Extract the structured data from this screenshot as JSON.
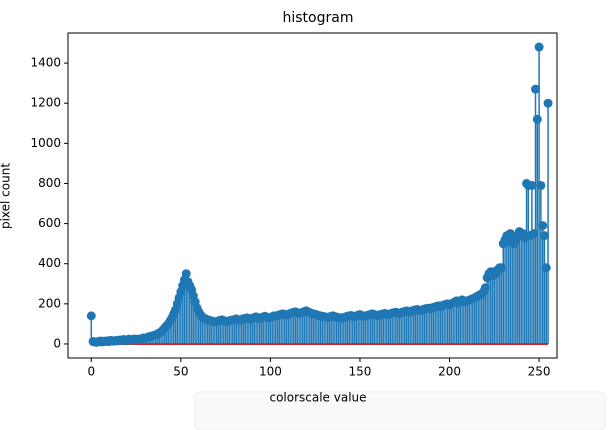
{
  "chart_data": {
    "type": "stem",
    "title": "histogram",
    "xlabel": "colorscale value",
    "ylabel": "pixel count",
    "x": [
      0,
      1,
      2,
      3,
      4,
      5,
      6,
      7,
      8,
      9,
      10,
      11,
      12,
      13,
      14,
      15,
      16,
      17,
      18,
      19,
      20,
      21,
      22,
      23,
      24,
      25,
      26,
      27,
      28,
      29,
      30,
      31,
      32,
      33,
      34,
      35,
      36,
      37,
      38,
      39,
      40,
      41,
      42,
      43,
      44,
      45,
      46,
      47,
      48,
      49,
      50,
      51,
      52,
      53,
      54,
      55,
      56,
      57,
      58,
      59,
      60,
      61,
      62,
      63,
      64,
      65,
      66,
      67,
      68,
      69,
      70,
      71,
      72,
      73,
      74,
      75,
      76,
      77,
      78,
      79,
      80,
      81,
      82,
      83,
      84,
      85,
      86,
      87,
      88,
      89,
      90,
      91,
      92,
      93,
      94,
      95,
      96,
      97,
      98,
      99,
      100,
      101,
      102,
      103,
      104,
      105,
      106,
      107,
      108,
      109,
      110,
      111,
      112,
      113,
      114,
      115,
      116,
      117,
      118,
      119,
      120,
      121,
      122,
      123,
      124,
      125,
      126,
      127,
      128,
      129,
      130,
      131,
      132,
      133,
      134,
      135,
      136,
      137,
      138,
      139,
      140,
      141,
      142,
      143,
      144,
      145,
      146,
      147,
      148,
      149,
      150,
      151,
      152,
      153,
      154,
      155,
      156,
      157,
      158,
      159,
      160,
      161,
      162,
      163,
      164,
      165,
      166,
      167,
      168,
      169,
      170,
      171,
      172,
      173,
      174,
      175,
      176,
      177,
      178,
      179,
      180,
      181,
      182,
      183,
      184,
      185,
      186,
      187,
      188,
      189,
      190,
      191,
      192,
      193,
      194,
      195,
      196,
      197,
      198,
      199,
      200,
      201,
      202,
      203,
      204,
      205,
      206,
      207,
      208,
      209,
      210,
      211,
      212,
      213,
      214,
      215,
      216,
      217,
      218,
      219,
      220,
      221,
      222,
      223,
      224,
      225,
      226,
      227,
      228,
      229,
      230,
      231,
      232,
      233,
      234,
      235,
      236,
      237,
      238,
      239,
      240,
      241,
      242,
      243,
      244,
      245,
      246,
      247,
      248,
      249,
      250,
      251,
      252,
      253,
      254,
      255
    ],
    "values": [
      140,
      12,
      10,
      8,
      12,
      15,
      10,
      14,
      12,
      16,
      12,
      18,
      15,
      14,
      18,
      16,
      20,
      18,
      22,
      16,
      20,
      24,
      18,
      22,
      25,
      20,
      24,
      22,
      26,
      30,
      28,
      32,
      35,
      38,
      40,
      42,
      45,
      50,
      55,
      60,
      70,
      80,
      90,
      100,
      115,
      130,
      150,
      170,
      200,
      230,
      260,
      290,
      320,
      350,
      310,
      290,
      270,
      240,
      210,
      180,
      160,
      145,
      135,
      128,
      125,
      120,
      118,
      115,
      112,
      110,
      112,
      115,
      118,
      120,
      116,
      114,
      112,
      115,
      118,
      120,
      122,
      125,
      120,
      118,
      122,
      126,
      128,
      130,
      126,
      124,
      128,
      132,
      135,
      130,
      128,
      132,
      135,
      138,
      134,
      130,
      132,
      136,
      140,
      138,
      142,
      145,
      148,
      150,
      146,
      144,
      148,
      152,
      155,
      158,
      160,
      156,
      152,
      155,
      158,
      162,
      165,
      160,
      156,
      152,
      150,
      148,
      145,
      142,
      140,
      138,
      136,
      134,
      132,
      135,
      138,
      140,
      136,
      134,
      132,
      130,
      128,
      132,
      135,
      138,
      140,
      142,
      138,
      136,
      140,
      144,
      146,
      142,
      140,
      138,
      142,
      145,
      148,
      150,
      146,
      144,
      142,
      145,
      148,
      150,
      152,
      148,
      146,
      150,
      154,
      156,
      158,
      155,
      152,
      156,
      160,
      162,
      165,
      162,
      160,
      164,
      168,
      170,
      172,
      168,
      166,
      170,
      174,
      176,
      178,
      175,
      180,
      182,
      185,
      188,
      190,
      186,
      192,
      195,
      198,
      200,
      196,
      200,
      205,
      210,
      215,
      208,
      212,
      220,
      210,
      212,
      215,
      218,
      222,
      226,
      230,
      235,
      240,
      245,
      250,
      260,
      280,
      330,
      350,
      360,
      340,
      360,
      350,
      370,
      380,
      380,
      500,
      520,
      540,
      510,
      550,
      530,
      500,
      520,
      540,
      560,
      540,
      550,
      530,
      800,
      790,
      540,
      790,
      550,
      1270,
      1120,
      1480,
      790,
      590,
      540,
      380,
      1200
    ],
    "color": "#1f77b4",
    "baseline_color": "#d62728",
    "xlim": [
      -13,
      260
    ],
    "ylim": [
      -70,
      1550
    ],
    "xticks": [
      0,
      50,
      100,
      150,
      200,
      250
    ],
    "yticks": [
      0,
      200,
      400,
      600,
      800,
      1000,
      1200,
      1400
    ]
  }
}
